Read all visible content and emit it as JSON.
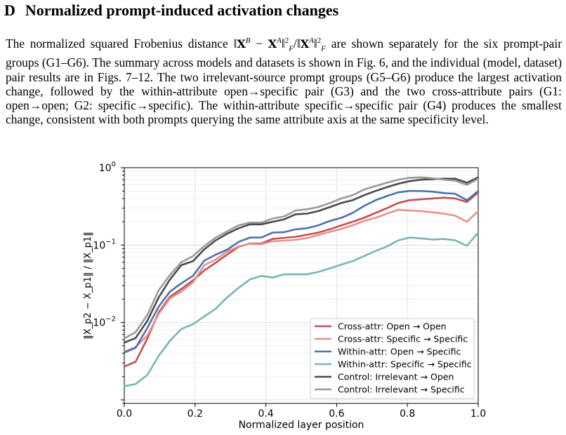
{
  "heading": {
    "number": "D",
    "title": "Normalized prompt-induced activation changes"
  },
  "paragraph": {
    "before_formula": "The normalized squared Frobenius distance",
    "after_formula": "are shown separately for the six prompt-pair groups (G1–G6). The summary across models and datasets is shown in Fig. 6, and the individual (model, dataset) pair results are in Figs. 7–12. The two irrelevant-source prompt groups (G5–G6) produce the largest activation change, followed by the within-attribute open→specific pair (G3) and the two cross-attribute pairs (G1: open→open; G2: specific→specific). The within-attribute specific→specific pair (G4) produces the smallest change, consistent with both prompts querying the same attribute axis at the same specificity level."
  },
  "chart_data": {
    "type": "line",
    "xlabel": "Normalized layer position",
    "ylabel": "‖X_p2 − X_p1‖ / ‖X_p1‖",
    "x_scale": "linear",
    "y_scale": "log",
    "xlim": [
      0.0,
      1.0
    ],
    "ylim": [
      0.0009,
      1.0
    ],
    "x_ticks": [
      0.0,
      0.2,
      0.4,
      0.6,
      0.8,
      1.0
    ],
    "x_tick_labels": [
      "0.0",
      "0.2",
      "0.4",
      "0.6",
      "0.8",
      "1.0"
    ],
    "y_ticks": [
      0.01,
      0.1,
      1.0
    ],
    "y_tick_labels": [
      "10",
      "10",
      "10"
    ],
    "y_tick_exponents": [
      "−2",
      "−1",
      "0"
    ],
    "grid": true,
    "legend_position": "lower-right",
    "x": [
      0.0,
      0.032,
      0.065,
      0.097,
      0.129,
      0.161,
      0.194,
      0.226,
      0.258,
      0.29,
      0.323,
      0.355,
      0.387,
      0.419,
      0.452,
      0.484,
      0.516,
      0.548,
      0.581,
      0.613,
      0.645,
      0.677,
      0.71,
      0.742,
      0.774,
      0.806,
      0.839,
      0.871,
      0.903,
      0.935,
      0.968,
      1.0
    ],
    "series": [
      {
        "name": "Cross-attr: Open → Open",
        "color": "#c44e52",
        "values": [
          0.0027,
          0.0031,
          0.0062,
          0.0135,
          0.0215,
          0.027,
          0.035,
          0.047,
          0.059,
          0.075,
          0.095,
          0.105,
          0.105,
          0.12,
          0.124,
          0.128,
          0.136,
          0.145,
          0.16,
          0.18,
          0.2,
          0.225,
          0.26,
          0.3,
          0.35,
          0.38,
          0.39,
          0.4,
          0.41,
          0.4,
          0.36,
          0.48
        ]
      },
      {
        "name": "Cross-attr: Specific → Specific",
        "color": "#e8908a",
        "values": [
          0.0042,
          0.0048,
          0.0068,
          0.0128,
          0.0205,
          0.025,
          0.033,
          0.055,
          0.065,
          0.082,
          0.096,
          0.104,
          0.103,
          0.112,
          0.114,
          0.117,
          0.123,
          0.135,
          0.148,
          0.162,
          0.18,
          0.205,
          0.225,
          0.255,
          0.285,
          0.28,
          0.275,
          0.265,
          0.255,
          0.24,
          0.2,
          0.275
        ]
      },
      {
        "name": "Within-attr: Open → Specific",
        "color": "#4c72b0",
        "values": [
          0.0041,
          0.0047,
          0.0085,
          0.016,
          0.025,
          0.032,
          0.04,
          0.063,
          0.075,
          0.087,
          0.11,
          0.125,
          0.125,
          0.145,
          0.147,
          0.16,
          0.165,
          0.18,
          0.205,
          0.225,
          0.26,
          0.32,
          0.38,
          0.43,
          0.48,
          0.5,
          0.5,
          0.49,
          0.47,
          0.46,
          0.38,
          0.5
        ]
      },
      {
        "name": "Within-attr: Specific → Specific",
        "color": "#76b7b2",
        "values": [
          0.0015,
          0.0016,
          0.0021,
          0.0037,
          0.0058,
          0.0082,
          0.0095,
          0.012,
          0.015,
          0.021,
          0.028,
          0.036,
          0.04,
          0.038,
          0.042,
          0.042,
          0.042,
          0.045,
          0.05,
          0.056,
          0.062,
          0.072,
          0.084,
          0.096,
          0.115,
          0.125,
          0.122,
          0.118,
          0.12,
          0.115,
          0.098,
          0.145
        ]
      },
      {
        "name": "Control: Irrelevant → Open",
        "color": "#4a4a4a",
        "values": [
          0.0055,
          0.0063,
          0.0105,
          0.021,
          0.036,
          0.055,
          0.062,
          0.088,
          0.115,
          0.14,
          0.165,
          0.185,
          0.185,
          0.2,
          0.215,
          0.25,
          0.255,
          0.275,
          0.31,
          0.35,
          0.38,
          0.44,
          0.5,
          0.56,
          0.62,
          0.67,
          0.7,
          0.71,
          0.72,
          0.72,
          0.64,
          0.75
        ]
      },
      {
        "name": "Control: Irrelevant → Specific",
        "color": "#9a9a9a",
        "values": [
          0.0062,
          0.0075,
          0.0125,
          0.026,
          0.041,
          0.06,
          0.072,
          0.097,
          0.125,
          0.15,
          0.18,
          0.195,
          0.195,
          0.22,
          0.235,
          0.28,
          0.29,
          0.31,
          0.35,
          0.4,
          0.44,
          0.52,
          0.58,
          0.64,
          0.7,
          0.74,
          0.75,
          0.73,
          0.7,
          0.68,
          0.6,
          0.72
        ]
      }
    ]
  }
}
